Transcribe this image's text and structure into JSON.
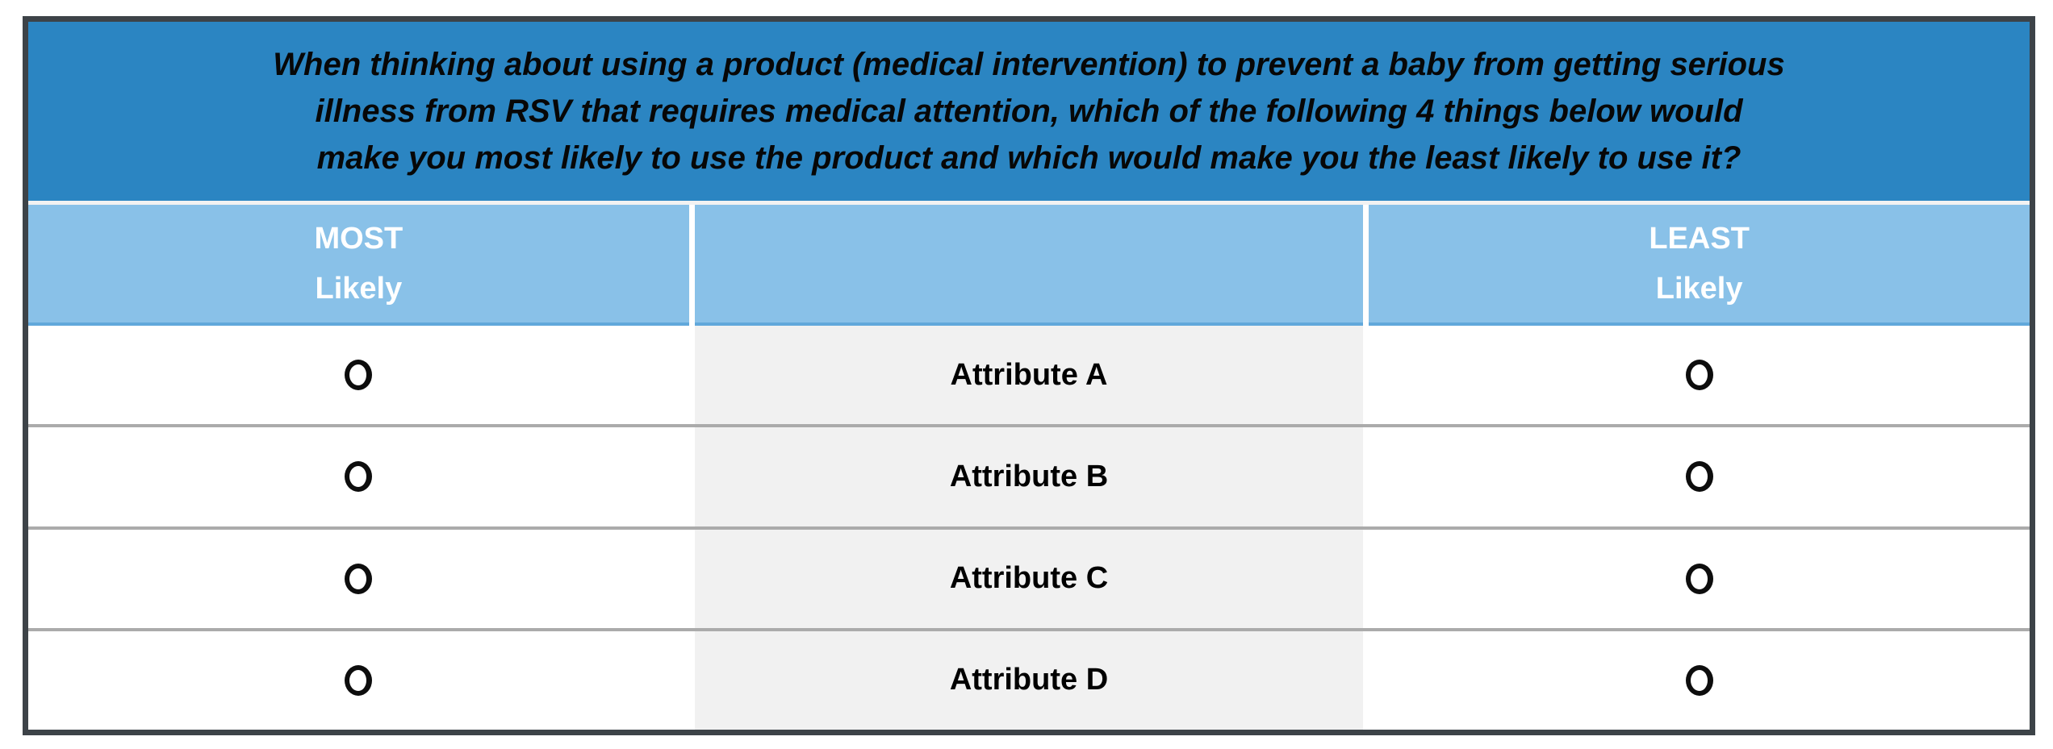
{
  "question": {
    "text": "When thinking about using a product (medical intervention) to prevent a baby from getting serious illness from RSV that requires medical attention, which of the following 4 things below would make you most likely to use the product and which would make you the least likely to use it?"
  },
  "columns": {
    "most": {
      "line1": "MOST",
      "line2": "Likely"
    },
    "least": {
      "line1": "LEAST",
      "line2": "Likely"
    }
  },
  "rows": [
    {
      "label": "Attribute A",
      "most_selected": false,
      "least_selected": false
    },
    {
      "label": "Attribute B",
      "most_selected": false,
      "least_selected": false
    },
    {
      "label": "Attribute C",
      "most_selected": false,
      "least_selected": false
    },
    {
      "label": "Attribute D",
      "most_selected": false,
      "least_selected": false
    }
  ],
  "colors": {
    "question_header_bg": "#2b85c2",
    "subheader_bg": "#89c1e8",
    "attribute_cell_bg": "#f1f1f1",
    "subheader_text": "#ffffff",
    "question_text": "#070707",
    "table_border": "#3d4348",
    "row_divider": "#ababab"
  }
}
